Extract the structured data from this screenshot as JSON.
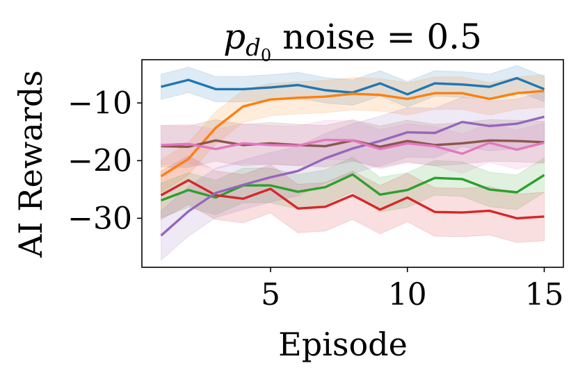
{
  "chart_data": {
    "type": "line",
    "title_main": "p",
    "title_sub": "d",
    "title_subsub": "0",
    "title_rest": " noise = 0.5",
    "xlabel": "Episode",
    "ylabel": "AI Rewards",
    "xlim": [
      0.3,
      15.7
    ],
    "ylim": [
      -38.5,
      -2.5
    ],
    "xticks": [
      5,
      10,
      15
    ],
    "xtick_labels": [
      "5",
      "10",
      "15"
    ],
    "yticks": [
      -10,
      -20,
      -30
    ],
    "ytick_labels": [
      "−10",
      "−20",
      "−30"
    ],
    "grid": false,
    "legend": "none",
    "x": [
      1,
      2,
      3,
      4,
      5,
      6,
      7,
      8,
      9,
      10,
      11,
      12,
      13,
      14,
      15
    ],
    "series": [
      {
        "name": "blue",
        "color": "#1f77b4",
        "values": [
          -7.2,
          -6.0,
          -7.6,
          -7.6,
          -7.3,
          -6.9,
          -7.8,
          -8.2,
          -6.6,
          -8.5,
          -6.6,
          -6.8,
          -7.2,
          -5.7,
          -7.6
        ],
        "band": 2.2
      },
      {
        "name": "orange",
        "color": "#ff7f0e",
        "values": [
          -22.7,
          -19.7,
          -14.3,
          -10.6,
          -9.4,
          -9.1,
          -8.9,
          -8.4,
          -8.6,
          -9.3,
          -8.3,
          -8.3,
          -9.3,
          -8.3,
          -7.9
        ],
        "band": 2.8
      },
      {
        "name": "green",
        "color": "#2ca02c",
        "values": [
          -26.9,
          -25.1,
          -26.4,
          -24.3,
          -24.3,
          -25.4,
          -24.6,
          -22.4,
          -25.9,
          -25.1,
          -23.0,
          -23.2,
          -25.0,
          -25.5,
          -22.5
        ],
        "band": 3.0
      },
      {
        "name": "red",
        "color": "#d62728",
        "values": [
          -26.0,
          -23.4,
          -26.0,
          -26.6,
          -24.9,
          -28.3,
          -28.0,
          -26.0,
          -28.5,
          -26.4,
          -28.9,
          -29.0,
          -28.7,
          -30.0,
          -29.7
        ],
        "band": 4.2
      },
      {
        "name": "purple",
        "color": "#9467bd",
        "values": [
          -33.0,
          -28.8,
          -25.6,
          -24.2,
          -22.9,
          -21.8,
          -19.6,
          -17.9,
          -16.6,
          -15.1,
          -15.2,
          -13.3,
          -14.0,
          -13.6,
          -12.4
        ],
        "band": 4.3
      },
      {
        "name": "brown",
        "color": "#8c564b",
        "values": [
          -17.5,
          -17.6,
          -16.5,
          -17.3,
          -17.0,
          -17.3,
          -17.5,
          -16.5,
          -17.6,
          -16.6,
          -17.3,
          -17.0,
          -16.5,
          -16.6,
          -16.8
        ],
        "band": 3.6
      },
      {
        "name": "pink",
        "color": "#e377c2",
        "values": [
          -17.3,
          -17.1,
          -18.0,
          -17.0,
          -17.3,
          -17.4,
          -16.4,
          -16.5,
          -18.0,
          -17.0,
          -17.5,
          -18.8,
          -16.9,
          -18.1,
          -16.9
        ],
        "band": 3.4
      }
    ]
  }
}
